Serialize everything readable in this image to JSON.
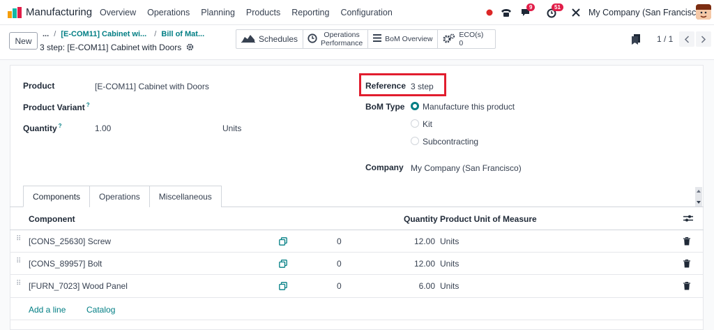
{
  "app": {
    "name": "Manufacturing"
  },
  "menu": [
    "Overview",
    "Operations",
    "Planning",
    "Products",
    "Reporting",
    "Configuration"
  ],
  "systray": {
    "messages_count": "9",
    "activities_count": "51",
    "company": "My Company (San Francisco)"
  },
  "control": {
    "new_label": "New",
    "breadcrumb_ellipsis": "...",
    "breadcrumb_sep": "/",
    "breadcrumb_1": "[E-COM11] Cabinet wi...",
    "breadcrumb_2": "Bill of Mat...",
    "record_title": "3 step: [E-COM11] Cabinet with Doors",
    "pager": "1 / 1"
  },
  "smart_buttons": {
    "schedules": "Schedules",
    "operations_perf_1": "Operations",
    "operations_perf_2": "Performance",
    "bom_overview": "BoM Overview",
    "eco_label": "ECO(s)",
    "eco_count": "0"
  },
  "form": {
    "product_label": "Product",
    "product_value": "[E-COM11] Cabinet with Doors",
    "variant_label": "Product Variant",
    "quantity_label": "Quantity",
    "quantity_value": "1.00",
    "quantity_uom": "Units",
    "reference_label": "Reference",
    "reference_value": "3 step",
    "bom_type_label": "BoM Type",
    "bom_type_options": [
      "Manufacture this product",
      "Kit",
      "Subcontracting"
    ],
    "bom_type_selected": "Manufacture this product",
    "company_label": "Company",
    "company_value": "My Company (San Francisco)",
    "help_mark": "?"
  },
  "tabs": [
    "Components",
    "Operations",
    "Miscellaneous"
  ],
  "table": {
    "headers": {
      "component": "Component",
      "quantity": "Quantity",
      "uom": "Product Unit of Measure"
    },
    "rows": [
      {
        "component": "[CONS_25630] Screw",
        "extra": "0",
        "quantity": "12.00",
        "uom": "Units"
      },
      {
        "component": "[CONS_89957] Bolt",
        "extra": "0",
        "quantity": "12.00",
        "uom": "Units"
      },
      {
        "component": "[FURN_7023] Wood Panel",
        "extra": "0",
        "quantity": "6.00",
        "uom": "Units"
      }
    ],
    "add_line": "Add a line",
    "catalog": "Catalog"
  },
  "colors": {
    "accent": "#017e84",
    "highlight": "#e11d2e",
    "badge": "#e11d48"
  }
}
